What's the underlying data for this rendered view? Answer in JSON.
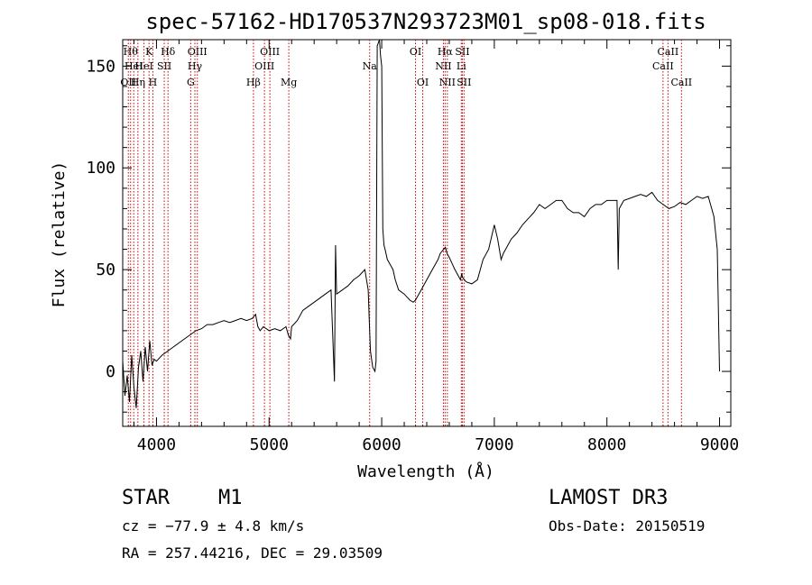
{
  "chart_data": {
    "type": "line",
    "title": "spec-57162-HD170537N293723M01_sp08-018.fits",
    "xlabel": "Wavelength (Å)",
    "ylabel": "Flux (relative)",
    "xlim": [
      3700,
      9100
    ],
    "ylim": [
      -27,
      163
    ],
    "x_ticks": [
      4000,
      5000,
      6000,
      7000,
      8000,
      9000
    ],
    "y_ticks": [
      0,
      50,
      100,
      150
    ],
    "spectrum": {
      "x": [
        3700,
        3720,
        3740,
        3760,
        3780,
        3800,
        3820,
        3840,
        3860,
        3880,
        3900,
        3920,
        3940,
        3960,
        3980,
        4000,
        4050,
        4100,
        4150,
        4200,
        4250,
        4300,
        4350,
        4400,
        4450,
        4500,
        4550,
        4600,
        4650,
        4700,
        4750,
        4800,
        4850,
        4880,
        4900,
        4920,
        4950,
        5000,
        5050,
        5100,
        5150,
        5170,
        5190,
        5200,
        5250,
        5300,
        5350,
        5400,
        5450,
        5500,
        5550,
        5580,
        5590,
        5600,
        5650,
        5700,
        5750,
        5800,
        5850,
        5880,
        5890,
        5900,
        5920,
        5940,
        5950,
        5960,
        5980,
        5990,
        6000,
        6010,
        6020,
        6030,
        6050,
        6080,
        6100,
        6120,
        6150,
        6200,
        6250,
        6280,
        6300,
        6350,
        6400,
        6450,
        6500,
        6520,
        6550,
        6565,
        6580,
        6600,
        6650,
        6700,
        6710,
        6720,
        6750,
        6800,
        6850,
        6900,
        6950,
        7000,
        7030,
        7060,
        7080,
        7100,
        7150,
        7200,
        7250,
        7300,
        7350,
        7400,
        7450,
        7500,
        7550,
        7600,
        7650,
        7700,
        7750,
        7800,
        7850,
        7900,
        7950,
        8000,
        8050,
        8090,
        8100,
        8110,
        8150,
        8200,
        8250,
        8300,
        8350,
        8400,
        8450,
        8500,
        8550,
        8600,
        8650,
        8700,
        8750,
        8800,
        8850,
        8900,
        8930,
        8950,
        8980,
        9000
      ],
      "y": [
        5,
        -12,
        -2,
        -15,
        8,
        -8,
        -18,
        2,
        10,
        -5,
        12,
        0,
        15,
        3,
        6,
        5,
        8,
        10,
        12,
        14,
        16,
        18,
        20,
        21,
        23,
        23,
        24,
        25,
        24,
        25,
        26,
        25,
        26,
        28,
        22,
        20,
        22,
        20,
        21,
        20,
        22,
        18,
        16,
        22,
        25,
        30,
        32,
        34,
        36,
        38,
        40,
        -5,
        62,
        38,
        40,
        42,
        45,
        47,
        50,
        40,
        25,
        10,
        2,
        0,
        5,
        160,
        165,
        155,
        150,
        70,
        62,
        60,
        55,
        52,
        50,
        45,
        40,
        38,
        35,
        34,
        35,
        40,
        45,
        50,
        55,
        58,
        60,
        61,
        58,
        56,
        50,
        45,
        48,
        46,
        44,
        43,
        45,
        55,
        60,
        72,
        65,
        55,
        58,
        60,
        65,
        68,
        72,
        75,
        78,
        82,
        80,
        82,
        84,
        84,
        80,
        78,
        78,
        76,
        80,
        82,
        82,
        84,
        84,
        84,
        50,
        80,
        84,
        85,
        86,
        87,
        86,
        88,
        84,
        82,
        80,
        81,
        83,
        82,
        84,
        86,
        85,
        86,
        80,
        76,
        60,
        0
      ]
    },
    "lines": [
      {
        "wavelength": 3750,
        "label": "OII",
        "row": 3
      },
      {
        "wavelength": 3770,
        "label": "Hθ",
        "row": 1
      },
      {
        "wavelength": 3798,
        "label": "HeI",
        "row": 2
      },
      {
        "wavelength": 3835,
        "label": "Hη",
        "row": 3
      },
      {
        "wavelength": 3889,
        "label": "HeI",
        "row": 2
      },
      {
        "wavelength": 3934,
        "label": "K",
        "row": 1
      },
      {
        "wavelength": 3968,
        "label": "H",
        "row": 3
      },
      {
        "wavelength": 4069,
        "label": "SII",
        "row": 2
      },
      {
        "wavelength": 4102,
        "label": "Hδ",
        "row": 1
      },
      {
        "wavelength": 4304,
        "label": "G",
        "row": 3
      },
      {
        "wavelength": 4341,
        "label": "Hγ",
        "row": 2
      },
      {
        "wavelength": 4363,
        "label": "OIII",
        "row": 1
      },
      {
        "wavelength": 4861,
        "label": "Hβ",
        "row": 3
      },
      {
        "wavelength": 4959,
        "label": "OIII",
        "row": 2
      },
      {
        "wavelength": 5007,
        "label": "OIII",
        "row": 1
      },
      {
        "wavelength": 5175,
        "label": "Mg",
        "row": 3
      },
      {
        "wavelength": 5893,
        "label": "Na",
        "row": 2
      },
      {
        "wavelength": 6300,
        "label": "OI",
        "row": 1
      },
      {
        "wavelength": 6364,
        "label": "OI",
        "row": 3
      },
      {
        "wavelength": 6548,
        "label": "NII",
        "row": 2
      },
      {
        "wavelength": 6563,
        "label": "Hα",
        "row": 1
      },
      {
        "wavelength": 6583,
        "label": "NII",
        "row": 3
      },
      {
        "wavelength": 6707,
        "label": "Li",
        "row": 2
      },
      {
        "wavelength": 6716,
        "label": "SII",
        "row": 1
      },
      {
        "wavelength": 6731,
        "label": "SII",
        "row": 3
      },
      {
        "wavelength": 8498,
        "label": "CaII",
        "row": 2
      },
      {
        "wavelength": 8542,
        "label": "CaII",
        "row": 1
      },
      {
        "wavelength": 8662,
        "label": "CaII",
        "row": 3
      }
    ],
    "line_color": "#cc0000",
    "grid": false
  },
  "info": {
    "object_class": "STAR",
    "subclass": "M1",
    "survey": "LAMOST DR3",
    "cz": "cz = −77.9 ± 4.8 km/s",
    "obs_date": "Obs-Date: 20150519",
    "coords": "RA = 257.44216, DEC =  29.03509"
  }
}
